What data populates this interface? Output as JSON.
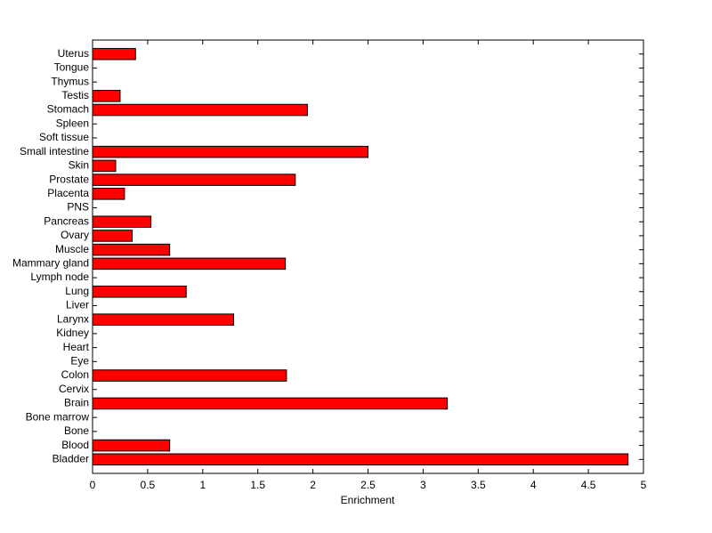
{
  "chart_data": {
    "type": "barh",
    "x_label": "Enrichment",
    "categories": [
      "Bladder",
      "Blood",
      "Bone",
      "Bone marrow",
      "Brain",
      "Cervix",
      "Colon",
      "Eye",
      "Heart",
      "Kidney",
      "Larynx",
      "Liver",
      "Lung",
      "Lymph node",
      "Mammary gland",
      "Muscle",
      "Ovary",
      "Pancreas",
      "PNS",
      "Placenta",
      "Prostate",
      "Skin",
      "Small intestine",
      "Soft tissue",
      "Spleen",
      "Stomach",
      "Testis",
      "Thymus",
      "Tongue",
      "Uterus"
    ],
    "values": [
      4.86,
      0.7,
      0,
      0,
      3.22,
      0,
      1.76,
      0,
      0,
      0,
      1.28,
      0,
      0.85,
      0,
      1.75,
      0.7,
      0.36,
      0.53,
      0,
      0.29,
      1.84,
      0.21,
      2.5,
      0,
      0,
      1.95,
      0.25,
      0,
      0,
      0.39
    ],
    "color": "#ff0000",
    "xlim": [
      0,
      5
    ],
    "xticks": [
      0,
      0.5,
      1,
      1.5,
      2,
      2.5,
      3,
      3.5,
      4,
      4.5,
      5
    ]
  }
}
